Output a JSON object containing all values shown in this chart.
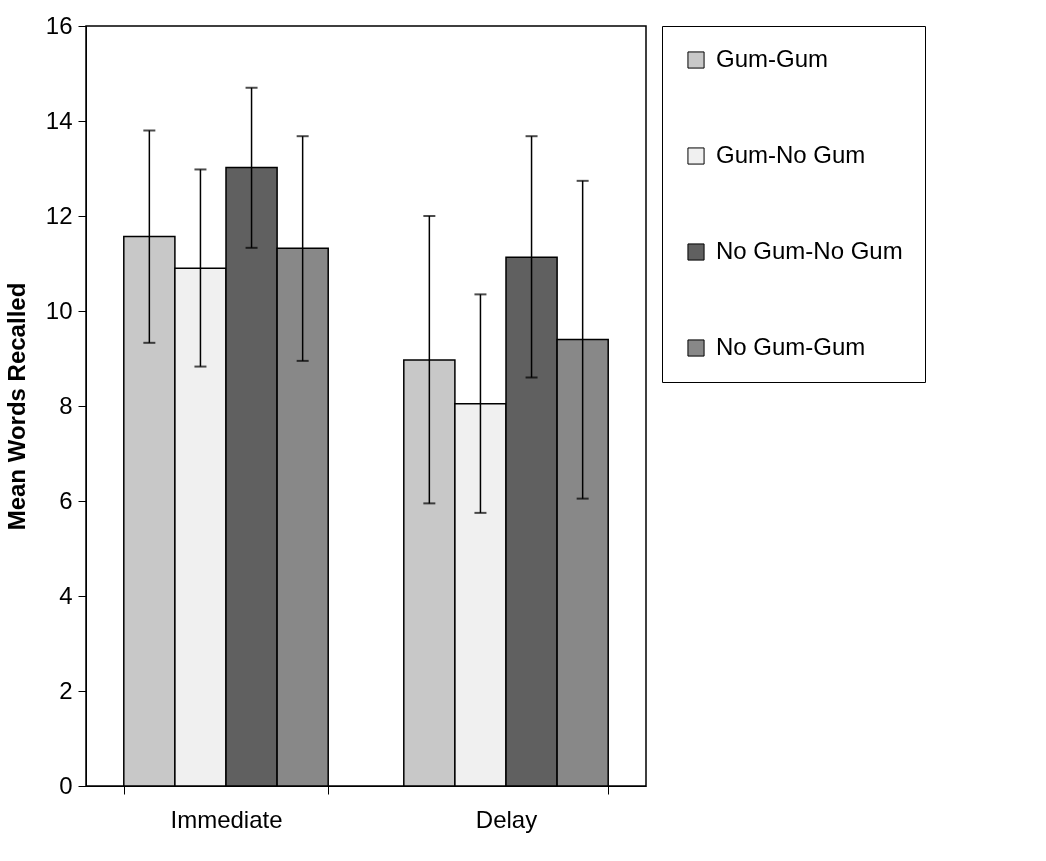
{
  "chart_data": {
    "type": "bar",
    "ylabel": "Mean Words Recalled",
    "categories": [
      "Immediate",
      "Delay"
    ],
    "series": [
      {
        "name": "Gum-Gum",
        "color": "#c8c8c8",
        "values": [
          11.57,
          8.97
        ],
        "errors": [
          [
            9.33,
            13.8
          ],
          [
            5.95,
            12.0
          ]
        ]
      },
      {
        "name": "Gum-No Gum",
        "color": "#f0f0f0",
        "values": [
          10.9,
          8.05
        ],
        "errors": [
          [
            8.83,
            12.98
          ],
          [
            5.75,
            10.35
          ]
        ]
      },
      {
        "name": "No Gum-No Gum",
        "color": "#606060",
        "values": [
          13.02,
          11.13
        ],
        "errors": [
          [
            11.33,
            14.7
          ],
          [
            8.6,
            13.68
          ]
        ]
      },
      {
        "name": "No Gum-Gum",
        "color": "#888888",
        "values": [
          11.32,
          9.4
        ],
        "errors": [
          [
            8.95,
            13.68
          ],
          [
            6.05,
            12.74
          ]
        ]
      }
    ],
    "ylim": [
      0,
      16
    ],
    "yticks": [
      0,
      2,
      4,
      6,
      8,
      10,
      12,
      14,
      16
    ],
    "grid": false,
    "legend": "right"
  }
}
